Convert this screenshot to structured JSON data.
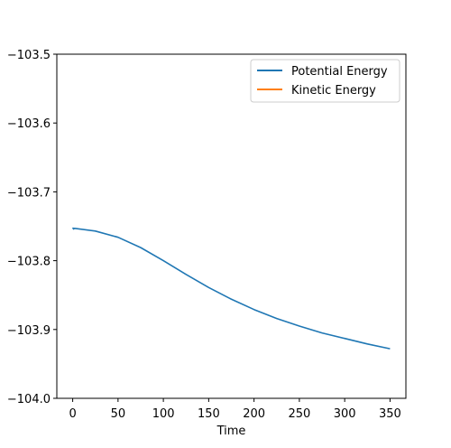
{
  "chart_data": {
    "type": "line",
    "title": "",
    "xlabel": "Time",
    "ylabel": "",
    "xlim": [
      -17.5,
      367.5
    ],
    "ylim": [
      -104.0,
      -103.5
    ],
    "x_ticks": [
      0,
      50,
      100,
      150,
      200,
      250,
      300,
      350
    ],
    "x_tick_labels": [
      "0",
      "50",
      "100",
      "150",
      "200",
      "250",
      "300",
      "350"
    ],
    "y_ticks": [
      -104.0,
      -103.9,
      -103.8,
      -103.7,
      -103.6,
      -103.5
    ],
    "y_tick_labels": [
      "−104.0",
      "−103.9",
      "−103.8",
      "−103.7",
      "−103.6",
      "−103.5"
    ],
    "grid": false,
    "legend_position": "top-right",
    "series": [
      {
        "name": "Potential Energy",
        "color": "#1f77b4",
        "x": [
          0,
          1,
          2,
          25,
          50,
          75,
          100,
          125,
          150,
          175,
          200,
          225,
          250,
          275,
          300,
          325,
          350
        ],
        "y": [
          -103.752,
          -103.754,
          -103.753,
          -103.757,
          -103.766,
          -103.781,
          -103.8,
          -103.82,
          -103.839,
          -103.856,
          -103.871,
          -103.884,
          -103.895,
          -103.905,
          -103.913,
          -103.921,
          -103.928
        ]
      },
      {
        "name": "Kinetic Energy",
        "color": "#ff7f0e",
        "x": [],
        "y": []
      }
    ]
  }
}
